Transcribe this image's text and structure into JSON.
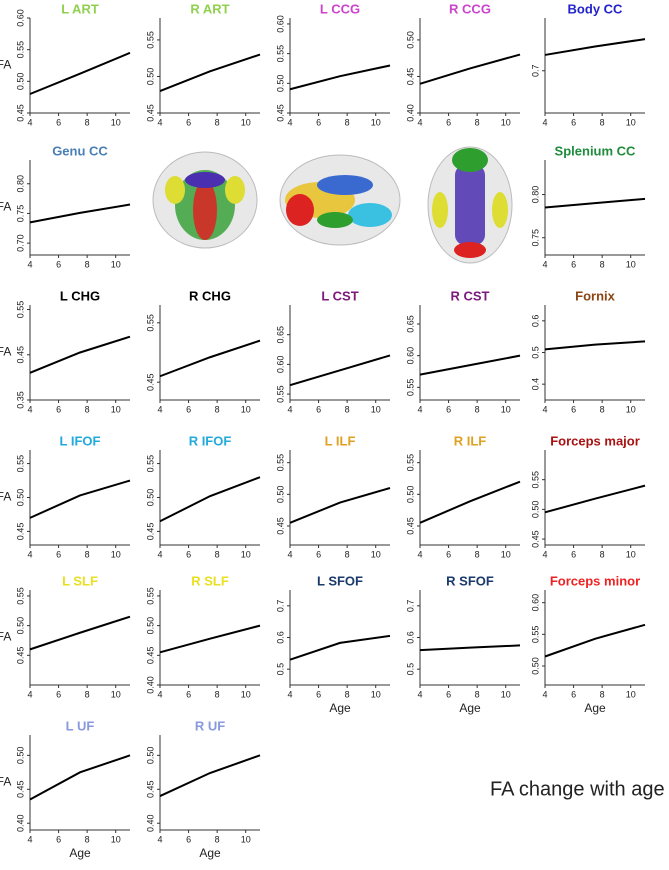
{
  "chart_data": [
    {
      "type": "line",
      "title": "L ART",
      "title_color": "#8fd14f",
      "ylabel": "FA",
      "xlim": [
        4,
        11
      ],
      "xticks": [
        4,
        6,
        8,
        10
      ],
      "ylim": [
        0.45,
        0.6
      ],
      "yticks": [
        0.45,
        {
          "value": 0.5,
          "label": "0.50"
        },
        0.55,
        {
          "value": 0.6,
          "label": "0.60"
        }
      ],
      "series": [
        {
          "color": "#000000",
          "x": [
            4,
            7.5,
            11
          ],
          "values": [
            0.48,
            0.512,
            0.545
          ]
        }
      ]
    },
    {
      "type": "line",
      "title": "R ART",
      "title_color": "#8fd14f",
      "xlim": [
        4,
        11
      ],
      "xticks": [
        4,
        6,
        8,
        10
      ],
      "ylim": [
        0.45,
        0.58
      ],
      "yticks": [
        0.45,
        {
          "value": 0.5,
          "label": "0.50"
        },
        0.55
      ],
      "series": [
        {
          "color": "#000000",
          "x": [
            4,
            7.5,
            11
          ],
          "values": [
            0.48,
            0.507,
            0.53
          ]
        }
      ]
    },
    {
      "type": "line",
      "title": "L CCG",
      "title_color": "#cc44cc",
      "xlim": [
        4,
        11
      ],
      "xticks": [
        4,
        6,
        8,
        10
      ],
      "ylim": [
        0.45,
        0.61
      ],
      "yticks": [
        0.45,
        {
          "value": 0.5,
          "label": "0.50"
        },
        0.55,
        {
          "value": 0.6,
          "label": "0.60"
        }
      ],
      "series": [
        {
          "color": "#000000",
          "x": [
            4,
            7.5,
            11
          ],
          "values": [
            0.49,
            0.512,
            0.53
          ]
        }
      ]
    },
    {
      "type": "line",
      "title": "R CCG",
      "title_color": "#cc44cc",
      "xlim": [
        4,
        11
      ],
      "xticks": [
        4,
        6,
        8,
        10
      ],
      "ylim": [
        0.4,
        0.53
      ],
      "yticks": [
        {
          "value": 0.4,
          "label": "0.40"
        },
        0.45,
        {
          "value": 0.5,
          "label": "0.50"
        }
      ],
      "series": [
        {
          "color": "#000000",
          "x": [
            4,
            7.5,
            11
          ],
          "values": [
            0.44,
            0.461,
            0.48
          ]
        }
      ]
    },
    {
      "type": "line",
      "title": "Body CC",
      "title_color": "#2222cc",
      "xlim": [
        4,
        11
      ],
      "xticks": [
        4,
        6,
        8,
        10
      ],
      "ylim": [
        0.62,
        0.8
      ],
      "yticks": [
        0.7
      ],
      "series": [
        {
          "color": "#000000",
          "x": [
            4,
            7.5,
            11
          ],
          "values": [
            0.73,
            0.746,
            0.76
          ]
        }
      ]
    },
    {
      "type": "line",
      "title": "Genu CC",
      "title_color": "#4a7fb5",
      "ylabel": "FA",
      "xlim": [
        4,
        11
      ],
      "xticks": [
        4,
        6,
        8,
        10
      ],
      "ylim": [
        0.68,
        0.84
      ],
      "yticks": [
        {
          "value": 0.7,
          "label": "0.70"
        },
        0.75,
        {
          "value": 0.8,
          "label": "0.80"
        }
      ],
      "series": [
        {
          "color": "#000000",
          "x": [
            4,
            7.5,
            11
          ],
          "values": [
            0.735,
            0.751,
            0.765
          ]
        }
      ]
    },
    {
      "type": "line",
      "title": "Splenium CC",
      "title_color": "#1e8c3c",
      "xlim": [
        4,
        11
      ],
      "xticks": [
        4,
        6,
        8,
        10
      ],
      "ylim": [
        0.73,
        0.84
      ],
      "yticks": [
        0.75,
        {
          "value": 0.8,
          "label": "0.80"
        }
      ],
      "series": [
        {
          "color": "#000000",
          "x": [
            4,
            7.5,
            11
          ],
          "values": [
            0.785,
            0.79,
            0.795
          ]
        }
      ]
    },
    {
      "type": "line",
      "title": "L CHG",
      "title_color": "#000000",
      "ylabel": "FA",
      "xlim": [
        4,
        11
      ],
      "xticks": [
        4,
        6,
        8,
        10
      ],
      "ylim": [
        0.35,
        0.56
      ],
      "yticks": [
        0.35,
        0.45,
        0.55
      ],
      "series": [
        {
          "color": "#000000",
          "x": [
            4,
            7.5,
            11
          ],
          "values": [
            0.41,
            0.455,
            0.49
          ]
        }
      ]
    },
    {
      "type": "line",
      "title": "R CHG",
      "title_color": "#000000",
      "xlim": [
        4,
        11
      ],
      "xticks": [
        4,
        6,
        8,
        10
      ],
      "ylim": [
        0.42,
        0.58
      ],
      "yticks": [
        0.45,
        0.55
      ],
      "series": [
        {
          "color": "#000000",
          "x": [
            4,
            7.5,
            11
          ],
          "values": [
            0.46,
            0.492,
            0.52
          ]
        }
      ]
    },
    {
      "type": "line",
      "title": "L CST",
      "title_color": "#7b1a7b",
      "xlim": [
        4,
        11
      ],
      "xticks": [
        4,
        6,
        8,
        10
      ],
      "ylim": [
        0.54,
        0.7
      ],
      "yticks": [
        0.55,
        {
          "value": 0.6,
          "label": "0.60"
        },
        0.65
      ],
      "series": [
        {
          "color": "#000000",
          "x": [
            4,
            7.5,
            11
          ],
          "values": [
            0.565,
            0.59,
            0.615
          ]
        }
      ]
    },
    {
      "type": "line",
      "title": "R CST",
      "title_color": "#7b1a7b",
      "xlim": [
        4,
        11
      ],
      "xticks": [
        4,
        6,
        8,
        10
      ],
      "ylim": [
        0.53,
        0.68
      ],
      "yticks": [
        0.55,
        {
          "value": 0.6,
          "label": "0.60"
        },
        0.65
      ],
      "series": [
        {
          "color": "#000000",
          "x": [
            4,
            7.5,
            11
          ],
          "values": [
            0.57,
            0.585,
            0.6
          ]
        }
      ]
    },
    {
      "type": "line",
      "title": "Fornix",
      "title_color": "#8b4513",
      "xlim": [
        4,
        11
      ],
      "xticks": [
        4,
        6,
        8,
        10
      ],
      "ylim": [
        0.35,
        0.65
      ],
      "yticks": [
        0.4,
        0.5,
        0.6
      ],
      "series": [
        {
          "color": "#000000",
          "x": [
            4,
            7.5,
            11
          ],
          "values": [
            0.51,
            0.525,
            0.535
          ]
        }
      ]
    },
    {
      "type": "line",
      "title": "L IFOF",
      "title_color": "#22aadd",
      "ylabel": "FA",
      "xlim": [
        4,
        11
      ],
      "xticks": [
        4,
        6,
        8,
        10
      ],
      "ylim": [
        0.43,
        0.57
      ],
      "yticks": [
        0.45,
        {
          "value": 0.5,
          "label": "0.50"
        },
        0.55
      ],
      "series": [
        {
          "color": "#000000",
          "x": [
            4,
            7.5,
            11
          ],
          "values": [
            0.47,
            0.503,
            0.525
          ]
        }
      ]
    },
    {
      "type": "line",
      "title": "R IFOF",
      "title_color": "#22aadd",
      "xlim": [
        4,
        11
      ],
      "xticks": [
        4,
        6,
        8,
        10
      ],
      "ylim": [
        0.43,
        0.57
      ],
      "yticks": [
        0.45,
        {
          "value": 0.5,
          "label": "0.50"
        },
        0.55
      ],
      "series": [
        {
          "color": "#000000",
          "x": [
            4,
            7.5,
            11
          ],
          "values": [
            0.465,
            0.502,
            0.53
          ]
        }
      ]
    },
    {
      "type": "line",
      "title": "L ILF",
      "title_color": "#e0a020",
      "xlim": [
        4,
        11
      ],
      "xticks": [
        4,
        6,
        8,
        10
      ],
      "ylim": [
        0.42,
        0.57
      ],
      "yticks": [
        0.45,
        {
          "value": 0.5,
          "label": "0.50"
        },
        0.55
      ],
      "series": [
        {
          "color": "#000000",
          "x": [
            4,
            7.5,
            11
          ],
          "values": [
            0.455,
            0.487,
            0.51
          ]
        }
      ]
    },
    {
      "type": "line",
      "title": "R ILF",
      "title_color": "#e0a020",
      "xlim": [
        4,
        11
      ],
      "xticks": [
        4,
        6,
        8,
        10
      ],
      "ylim": [
        0.42,
        0.57
      ],
      "yticks": [
        0.45,
        {
          "value": 0.5,
          "label": "0.50"
        },
        0.55
      ],
      "series": [
        {
          "color": "#000000",
          "x": [
            4,
            7.5,
            11
          ],
          "values": [
            0.455,
            0.489,
            0.52
          ]
        }
      ]
    },
    {
      "type": "line",
      "title": "Forceps major",
      "title_color": "#aa1111",
      "xlim": [
        4,
        11
      ],
      "xticks": [
        4,
        6,
        8,
        10
      ],
      "ylim": [
        0.44,
        0.6
      ],
      "yticks": [
        0.45,
        {
          "value": 0.5,
          "label": "0.50"
        },
        0.55
      ],
      "series": [
        {
          "color": "#000000",
          "x": [
            4,
            7.5,
            11
          ],
          "values": [
            0.495,
            0.518,
            0.54
          ]
        }
      ]
    },
    {
      "type": "line",
      "title": "L SLF",
      "title_color": "#e8e020",
      "ylabel": "FA",
      "xlim": [
        4,
        11
      ],
      "xticks": [
        4,
        6,
        8,
        10
      ],
      "ylim": [
        0.4,
        0.56
      ],
      "yticks": [
        0.45,
        {
          "value": 0.5,
          "label": "0.50"
        },
        0.55
      ],
      "series": [
        {
          "color": "#000000",
          "x": [
            4,
            7.5,
            11
          ],
          "values": [
            0.46,
            0.488,
            0.515
          ]
        }
      ]
    },
    {
      "type": "line",
      "title": "R SLF",
      "title_color": "#e8e020",
      "xlim": [
        4,
        11
      ],
      "xticks": [
        4,
        6,
        8,
        10
      ],
      "ylim": [
        0.4,
        0.56
      ],
      "yticks": [
        {
          "value": 0.4,
          "label": "0.40"
        },
        0.45,
        {
          "value": 0.5,
          "label": "0.50"
        },
        0.55
      ],
      "series": [
        {
          "color": "#000000",
          "x": [
            4,
            7.5,
            11
          ],
          "values": [
            0.455,
            0.478,
            0.5
          ]
        }
      ]
    },
    {
      "type": "line",
      "title": "L SFOF",
      "title_color": "#1a3a6a",
      "xlabel": "Age",
      "xlim": [
        4,
        11
      ],
      "xticks": [
        4,
        6,
        8,
        10
      ],
      "ylim": [
        0.45,
        0.75
      ],
      "yticks": [
        0.5,
        0.6,
        0.7
      ],
      "series": [
        {
          "color": "#000000",
          "x": [
            4,
            7.5,
            11
          ],
          "values": [
            0.53,
            0.583,
            0.605
          ]
        }
      ]
    },
    {
      "type": "line",
      "title": "R SFOF",
      "title_color": "#1a3a6a",
      "xlabel": "Age",
      "xlim": [
        4,
        11
      ],
      "xticks": [
        4,
        6,
        8,
        10
      ],
      "ylim": [
        0.45,
        0.75
      ],
      "yticks": [
        0.5,
        0.6,
        0.7
      ],
      "series": [
        {
          "color": "#000000",
          "x": [
            4,
            7.5,
            11
          ],
          "values": [
            0.56,
            0.568,
            0.575
          ]
        }
      ]
    },
    {
      "type": "line",
      "title": "Forceps minor",
      "title_color": "#ee2222",
      "xlabel": "Age",
      "xlim": [
        4,
        11
      ],
      "xticks": [
        4,
        6,
        8,
        10
      ],
      "ylim": [
        0.47,
        0.62
      ],
      "yticks": [
        {
          "value": 0.5,
          "label": "0.50"
        },
        0.55,
        {
          "value": 0.6,
          "label": "0.60"
        }
      ],
      "series": [
        {
          "color": "#000000",
          "x": [
            4,
            7.5,
            11
          ],
          "values": [
            0.515,
            0.543,
            0.565
          ]
        }
      ]
    },
    {
      "type": "line",
      "title": "L UF",
      "title_color": "#8899dd",
      "ylabel": "FA",
      "xlabel": "Age",
      "xlim": [
        4,
        11
      ],
      "xticks": [
        4,
        6,
        8,
        10
      ],
      "ylim": [
        0.39,
        0.53
      ],
      "yticks": [
        {
          "value": 0.4,
          "label": "0.40"
        },
        0.45,
        {
          "value": 0.5,
          "label": "0.50"
        }
      ],
      "series": [
        {
          "color": "#000000",
          "x": [
            4,
            7.5,
            11
          ],
          "values": [
            0.435,
            0.475,
            0.5
          ]
        }
      ]
    },
    {
      "type": "line",
      "title": "R UF",
      "title_color": "#8899dd",
      "xlabel": "Age",
      "xlim": [
        4,
        11
      ],
      "xticks": [
        4,
        6,
        8,
        10
      ],
      "ylim": [
        0.39,
        0.53
      ],
      "yticks": [
        {
          "value": 0.4,
          "label": "0.40"
        },
        0.45,
        {
          "value": 0.5,
          "label": "0.50"
        }
      ],
      "series": [
        {
          "color": "#000000",
          "x": [
            4,
            7.5,
            11
          ],
          "values": [
            0.44,
            0.474,
            0.5
          ]
        }
      ]
    }
  ],
  "caption": "FA change with age"
}
